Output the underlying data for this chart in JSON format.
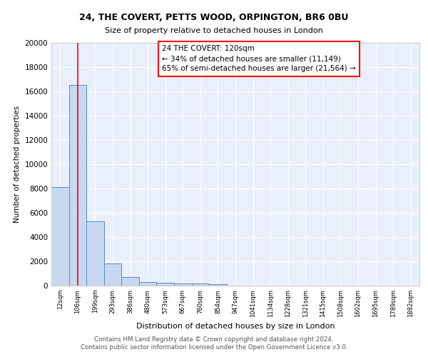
{
  "title1": "24, THE COVERT, PETTS WOOD, ORPINGTON, BR6 0BU",
  "title2": "Size of property relative to detached houses in London",
  "xlabel": "Distribution of detached houses by size in London",
  "ylabel": "Number of detached properties",
  "categories": [
    "12sqm",
    "106sqm",
    "199sqm",
    "293sqm",
    "386sqm",
    "480sqm",
    "573sqm",
    "667sqm",
    "760sqm",
    "854sqm",
    "947sqm",
    "1041sqm",
    "1134sqm",
    "1228sqm",
    "1321sqm",
    "1415sqm",
    "1508sqm",
    "1602sqm",
    "1695sqm",
    "1789sqm",
    "1882sqm"
  ],
  "values": [
    8100,
    16500,
    5300,
    1850,
    700,
    310,
    220,
    185,
    170,
    140,
    0,
    0,
    0,
    0,
    0,
    0,
    0,
    0,
    0,
    0,
    0
  ],
  "bar_color": "#c8d8f0",
  "bar_edge_color": "#5b8ac4",
  "property_label": "24 THE COVERT: 120sqm",
  "annotation_line1": "← 34% of detached houses are smaller (11,149)",
  "annotation_line2": "65% of semi-detached houses are larger (21,564) →",
  "red_line_x": 1.0,
  "annotation_box_color": "white",
  "annotation_box_edge": "red",
  "ylim": [
    0,
    20000
  ],
  "yticks": [
    0,
    2000,
    4000,
    6000,
    8000,
    10000,
    12000,
    14000,
    16000,
    18000,
    20000
  ],
  "background_color": "#eaf0fb",
  "footer1": "Contains HM Land Registry data © Crown copyright and database right 2024.",
  "footer2": "Contains public sector information licensed under the Open Government Licence v3.0."
}
